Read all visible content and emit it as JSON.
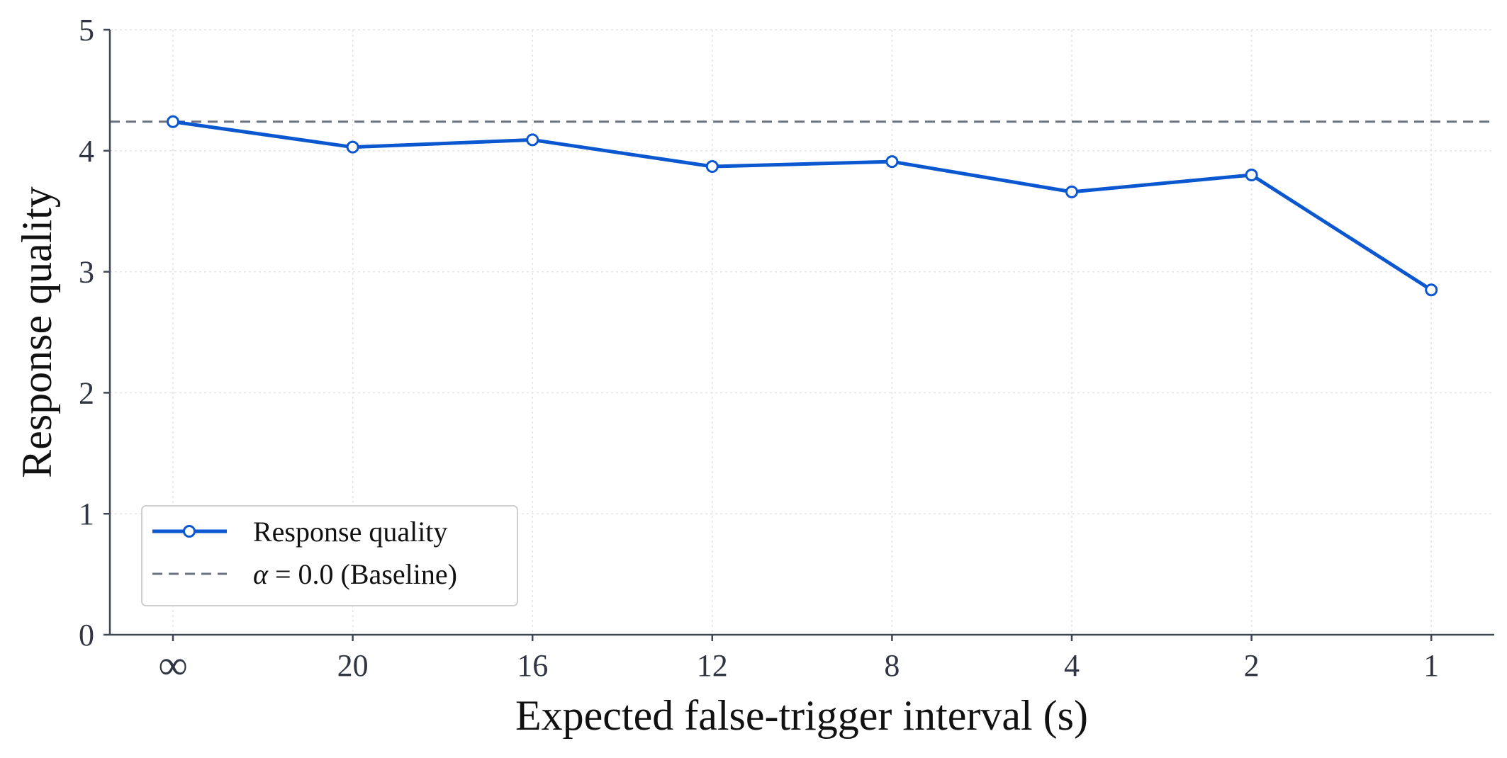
{
  "chart_data": {
    "type": "line",
    "title": "",
    "xlabel": "Expected false-trigger interval (s)",
    "ylabel": "Response quality",
    "categories": [
      "∞",
      "20",
      "16",
      "12",
      "8",
      "4",
      "2",
      "1"
    ],
    "ylim": [
      0,
      5
    ],
    "yticks": [
      "0",
      "1",
      "2",
      "3",
      "4",
      "5"
    ],
    "grid": true,
    "legend_position": "bottom-left",
    "series": [
      {
        "name": "Response quality",
        "values": [
          4.24,
          4.03,
          4.09,
          3.87,
          3.91,
          3.66,
          3.8,
          2.85
        ],
        "color": "#0b57d0",
        "marker": "open-circle"
      }
    ],
    "reference_lines": [
      {
        "name_prefix": "α",
        "name_rest": " = 0.0 (Baseline)",
        "value": 4.24,
        "style": "dashed",
        "color": "#6b7280"
      }
    ]
  }
}
